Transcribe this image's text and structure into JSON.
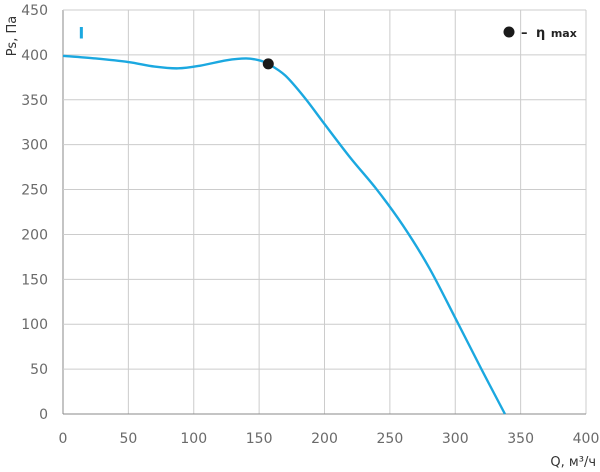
{
  "chart_data": {
    "type": "line",
    "xlabel": "Q, м³/ч",
    "ylabel": "Ps, Па",
    "xlim": [
      0,
      400
    ],
    "ylim": [
      0,
      450
    ],
    "xticks": [
      0,
      50,
      100,
      150,
      200,
      250,
      300,
      350,
      400
    ],
    "yticks": [
      0,
      50,
      100,
      150,
      200,
      250,
      300,
      350,
      400,
      450
    ],
    "grid": true,
    "series": [
      {
        "name": "I",
        "color": "#1ba8e0",
        "x": [
          0,
          25,
          50,
          70,
          88,
          105,
          125,
          140,
          150,
          157,
          170,
          185,
          200,
          220,
          240,
          260,
          280,
          300,
          320,
          338
        ],
        "y": [
          399,
          396,
          392,
          387,
          385,
          388,
          394,
          396,
          394,
          390,
          377,
          352,
          323,
          285,
          250,
          210,
          163,
          107,
          50,
          0
        ]
      }
    ],
    "marker": {
      "label": "η",
      "subscript": "max",
      "prefix": "–",
      "x": 157,
      "y": 390,
      "color": "#1a1a1a"
    },
    "legend_position": "top-right"
  }
}
